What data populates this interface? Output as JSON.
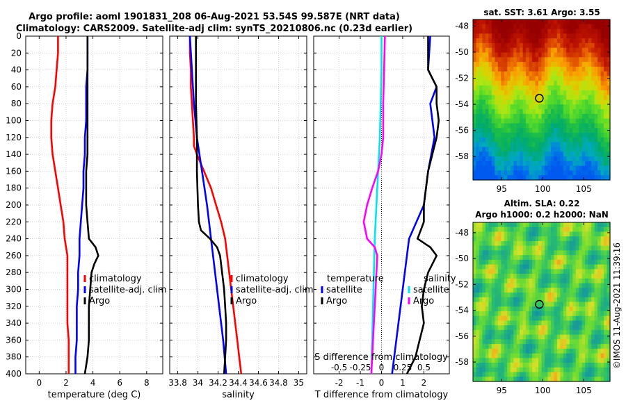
{
  "title_line1": "Argo profile: aoml 1901831_208 06-Aug-2021 53.54S 99.587E (NRT data)",
  "title_line2": "Climatology: CARS2009. Satellite-adj clim: synTS_20210806.nc (0.23d earlier)",
  "watermark": "©IMOS 11-Aug-2021 11:39:16",
  "depth_ticks": [
    0,
    20,
    40,
    60,
    80,
    100,
    120,
    140,
    160,
    180,
    200,
    220,
    240,
    260,
    280,
    300,
    320,
    340,
    360,
    380,
    400
  ],
  "panels": {
    "temperature": {
      "xlabel": "temperature (deg C)",
      "xlim": [
        -1,
        9.2
      ],
      "xticks": [
        0,
        2,
        4,
        6,
        8
      ],
      "legend": [
        "climatology",
        "satellite-adj. clim",
        "Argo"
      ],
      "colors": [
        "#ff0000",
        "#0000ff",
        "#000000"
      ]
    },
    "salinity": {
      "xlabel": "salinity",
      "xlim": [
        33.72,
        35.08
      ],
      "xticks": [
        "33.8",
        "34",
        "34.2",
        "34.4",
        "34.6",
        "34.8",
        "35"
      ],
      "legend": [
        "climatology",
        "satellite-adj. clim",
        "Argo"
      ],
      "colors": [
        "#ff0000",
        "#0000ff",
        "#000000"
      ]
    },
    "difference": {
      "xlabel": "T difference from climatology",
      "xlim": [
        -3.2,
        3.2
      ],
      "xticks": [
        -2,
        -1,
        0,
        1,
        2
      ],
      "top_label": "S difference from climatology",
      "top_ticks": [
        "-0.5",
        "-0.25",
        "0",
        "0.25",
        "0.5"
      ],
      "legend_t_title": "temperature",
      "legend_t": [
        "satellite",
        "Argo"
      ],
      "legend_s_title": "salinity",
      "legend_s": [
        "satellite",
        "Argo"
      ]
    }
  },
  "maps": {
    "sst": {
      "title": "sat. SST: 3.61 Argo: 3.55",
      "yticks": [
        "-48",
        "-50",
        "-52",
        "-54",
        "-56",
        "-58"
      ],
      "xticks": [
        "95",
        "100",
        "105"
      ],
      "xlim": [
        91.5,
        108.2
      ],
      "ylim": [
        -59.8,
        -47.5
      ],
      "marker": {
        "lon": 99.587,
        "lat": -53.54
      }
    },
    "sla": {
      "title_line1": "Altim. SLA: 0.22",
      "title_line2": "Argo h1000: 0.2 h2000: NaN",
      "yticks": [
        "-48",
        "-50",
        "-52",
        "-54",
        "-56",
        "-58"
      ],
      "xticks": [
        "95",
        "100",
        "105"
      ],
      "xlim": [
        91.5,
        108.2
      ],
      "ylim": [
        -59.5,
        -47.2
      ],
      "marker": {
        "lon": 99.587,
        "lat": -53.54
      }
    }
  },
  "chart_data": [
    {
      "type": "line",
      "title": "temperature profile",
      "xlabel": "temperature (deg C)",
      "ylabel": "depth",
      "ylim": [
        0,
        400
      ],
      "series": [
        {
          "name": "climatology",
          "color": "#ff0000",
          "depth": [
            0,
            20,
            40,
            60,
            80,
            100,
            120,
            140,
            160,
            180,
            200,
            220,
            240,
            260,
            280,
            300,
            320,
            340,
            360,
            380,
            400
          ],
          "values": [
            1.4,
            1.4,
            1.3,
            1.2,
            1.0,
            0.9,
            0.9,
            1.0,
            1.2,
            1.4,
            1.6,
            1.8,
            1.9,
            2.1,
            2.1,
            2.1,
            2.1,
            2.1,
            2.2,
            2.2,
            2.2
          ]
        },
        {
          "name": "satellite-adj. clim",
          "color": "#0000ff",
          "depth": [
            0,
            20,
            40,
            60,
            80,
            100,
            120,
            140,
            160,
            180,
            200,
            220,
            240,
            260,
            280,
            300,
            320,
            340,
            360,
            380,
            400
          ],
          "values": [
            3.6,
            3.6,
            3.6,
            3.5,
            3.5,
            3.5,
            3.4,
            3.4,
            3.3,
            3.3,
            3.2,
            3.1,
            3.0,
            3.0,
            2.9,
            2.9,
            2.8,
            2.8,
            2.8,
            2.7,
            2.7
          ]
        },
        {
          "name": "Argo",
          "color": "#000000",
          "depth": [
            0,
            20,
            40,
            60,
            80,
            100,
            120,
            140,
            160,
            180,
            200,
            220,
            240,
            250,
            260,
            270,
            280,
            300,
            320,
            340,
            360,
            380,
            400
          ],
          "values": [
            3.6,
            3.6,
            3.6,
            3.6,
            3.6,
            3.6,
            3.6,
            3.6,
            3.5,
            3.5,
            3.5,
            3.6,
            3.7,
            4.2,
            4.4,
            4.1,
            3.9,
            3.8,
            3.7,
            3.7,
            3.7,
            3.6,
            3.4
          ]
        }
      ]
    },
    {
      "type": "line",
      "title": "salinity profile",
      "xlabel": "salinity",
      "ylabel": "depth",
      "ylim": [
        0,
        400
      ],
      "series": [
        {
          "name": "climatology",
          "color": "#ff0000",
          "depth": [
            0,
            20,
            40,
            60,
            80,
            100,
            120,
            130,
            140,
            160,
            180,
            200,
            220,
            240,
            260,
            280,
            300,
            320,
            340,
            360,
            380,
            400
          ],
          "values": [
            33.92,
            33.92,
            33.93,
            33.93,
            33.94,
            33.95,
            33.96,
            33.96,
            33.99,
            34.06,
            34.13,
            34.18,
            34.23,
            34.27,
            34.29,
            34.31,
            34.33,
            34.35,
            34.37,
            34.39,
            34.41,
            34.43
          ]
        },
        {
          "name": "satellite-adj. clim",
          "color": "#0000ff",
          "depth": [
            0,
            40,
            80,
            120,
            160,
            200,
            240,
            280,
            320,
            360,
            400
          ],
          "values": [
            33.92,
            33.94,
            33.96,
            33.99,
            34.04,
            34.09,
            34.13,
            34.17,
            34.21,
            34.25,
            34.28
          ]
        },
        {
          "name": "Argo",
          "color": "#000000",
          "depth": [
            0,
            40,
            80,
            120,
            160,
            200,
            220,
            230,
            240,
            250,
            260,
            280,
            300,
            320,
            340,
            360,
            380,
            400
          ],
          "values": [
            33.98,
            33.98,
            33.98,
            33.99,
            33.99,
            34.0,
            34.01,
            34.03,
            34.12,
            34.19,
            34.22,
            34.24,
            34.26,
            34.27,
            34.28,
            34.28,
            34.27,
            34.26
          ]
        }
      ]
    },
    {
      "type": "line",
      "title": "difference from climatology",
      "xlabel": "T difference from climatology",
      "ylabel": "depth",
      "ylim": [
        0,
        400
      ],
      "series": [
        {
          "name": "temperature satellite",
          "color": "#0000ff",
          "axis": "T",
          "depth": [
            0,
            40,
            60,
            80,
            120,
            160,
            200,
            240,
            280,
            320,
            360,
            400
          ],
          "values": [
            2.3,
            2.2,
            2.6,
            2.3,
            2.5,
            2.2,
            2.0,
            1.3,
            1.1,
            0.9,
            0.7,
            0.5
          ]
        },
        {
          "name": "temperature Argo",
          "color": "#000000",
          "axis": "T",
          "depth": [
            0,
            40,
            60,
            80,
            100,
            120,
            160,
            200,
            220,
            240,
            250,
            260,
            280,
            300,
            320,
            340,
            360,
            380,
            400
          ],
          "values": [
            2.2,
            2.2,
            2.6,
            2.6,
            2.7,
            2.6,
            2.2,
            2.0,
            2.0,
            1.7,
            2.3,
            2.6,
            2.2,
            2.0,
            1.9,
            2.0,
            1.8,
            1.6,
            1.2
          ]
        },
        {
          "name": "salinity satellite",
          "color": "#00e5ee",
          "axis": "S",
          "depth": [
            0,
            40,
            80,
            120,
            160,
            200,
            240,
            280,
            320,
            360,
            400
          ],
          "values": [
            0.0,
            0.0,
            -0.01,
            -0.02,
            -0.04,
            -0.06,
            -0.08,
            -0.09,
            -0.1,
            -0.11,
            -0.12
          ]
        },
        {
          "name": "salinity Argo",
          "color": "#ff00ff",
          "axis": "S",
          "depth": [
            0,
            40,
            80,
            120,
            140,
            160,
            180,
            200,
            220,
            240,
            250,
            260,
            280,
            320,
            360,
            400
          ],
          "values": [
            0.04,
            0.03,
            0.02,
            0.02,
            0.0,
            -0.04,
            -0.11,
            -0.17,
            -0.21,
            -0.17,
            -0.08,
            -0.05,
            -0.06,
            -0.08,
            -0.1,
            -0.12
          ]
        }
      ]
    }
  ]
}
